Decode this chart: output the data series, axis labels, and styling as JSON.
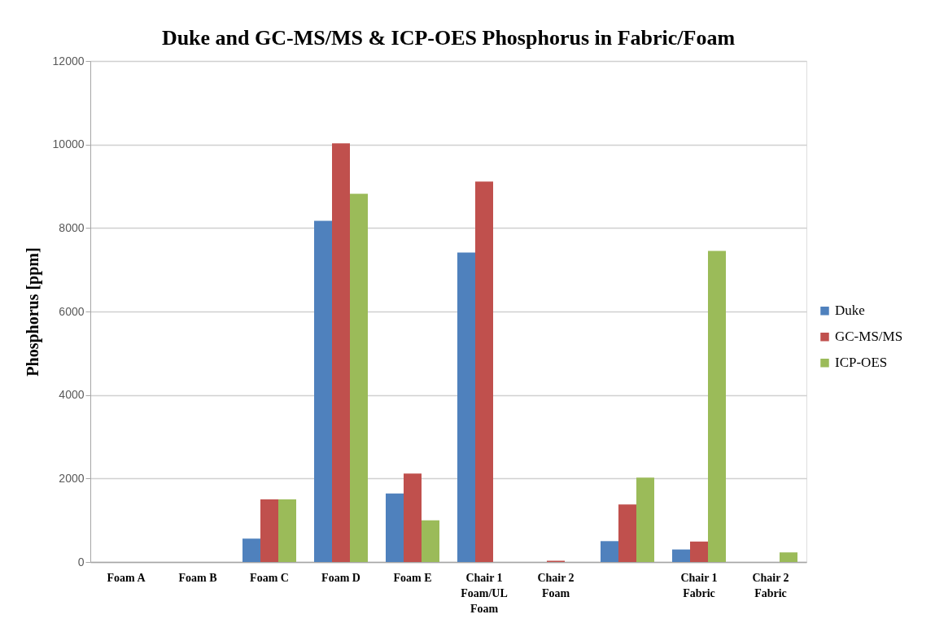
{
  "chart_data": {
    "type": "bar",
    "title": "Duke and GC-MS/MS & ICP-OES Phosphorus in Fabric/Foam",
    "ylabel": "Phosphorus [ppm]",
    "categories": [
      "Foam A",
      "Foam B",
      "Foam C",
      "Foam D",
      "Foam E",
      "Chair 1 Foam/UL Foam",
      "Chair 2 Foam",
      null,
      "Chair 1 Fabric",
      "Chair 2 Fabric"
    ],
    "series": [
      {
        "name": "Duke",
        "color": "#4f81bd",
        "values": [
          null,
          null,
          560,
          8170,
          1640,
          7410,
          null,
          500,
          300,
          null
        ]
      },
      {
        "name": "GC-MS/MS",
        "color": "#c0504d",
        "values": [
          null,
          null,
          1500,
          10030,
          2120,
          9110,
          30,
          1380,
          490,
          null
        ]
      },
      {
        "name": "ICP-OES",
        "color": "#9bbb59",
        "values": [
          null,
          null,
          1500,
          8820,
          1000,
          null,
          null,
          2020,
          7450,
          230
        ]
      }
    ],
    "ylim": [
      0,
      12000
    ],
    "yticks": [
      0,
      2000,
      4000,
      6000,
      8000,
      10000,
      12000
    ],
    "grid": "y",
    "legend": "right"
  }
}
